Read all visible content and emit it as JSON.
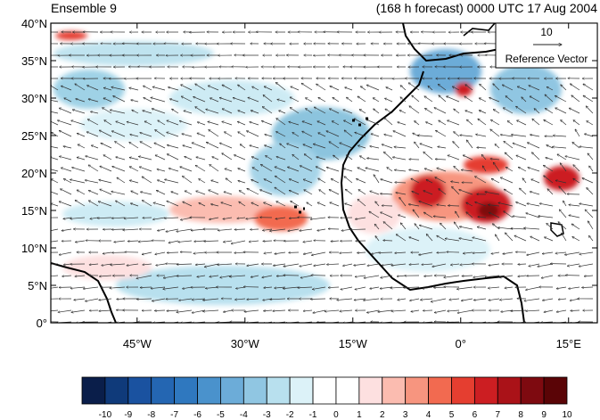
{
  "header": {
    "left_title": "Ensemble 9",
    "right_title": "(168 h forecast) 0000 UTC 17 Aug 2004"
  },
  "map": {
    "lat_labels": [
      "40°N",
      "35°N",
      "30°N",
      "25°N",
      "20°N",
      "15°N",
      "10°N",
      "5°N",
      "0°"
    ],
    "lon_labels": [
      "45°W",
      "30°W",
      "15°W",
      "0°",
      "15°E"
    ],
    "lat_range": [
      0,
      40
    ],
    "lon_range": [
      -57,
      19
    ],
    "ocean_color": "#ffffff",
    "land_outline_color": "#000000"
  },
  "reference_vector": {
    "magnitude_label": "10",
    "caption": "Reference Vector"
  },
  "colorbar": {
    "levels": [
      "-10",
      "-9",
      "-8",
      "-7",
      "-6",
      "-5",
      "-4",
      "-3",
      "-2",
      "-1",
      "0",
      "1",
      "2",
      "3",
      "4",
      "5",
      "6",
      "7",
      "8",
      "9",
      "10"
    ],
    "colors": [
      "#0a1e4a",
      "#0f3a7a",
      "#1a52a0",
      "#2466b2",
      "#2f78bf",
      "#4a92cc",
      "#6cacd8",
      "#90c6e2",
      "#b8e0ee",
      "#dcf2f8",
      "#ffffff",
      "#ffffff",
      "#fde0e0",
      "#fbbcb0",
      "#f7957f",
      "#f26a50",
      "#e53e30",
      "#cc1e22",
      "#aa1218",
      "#7e0a10",
      "#5a0406"
    ]
  }
}
